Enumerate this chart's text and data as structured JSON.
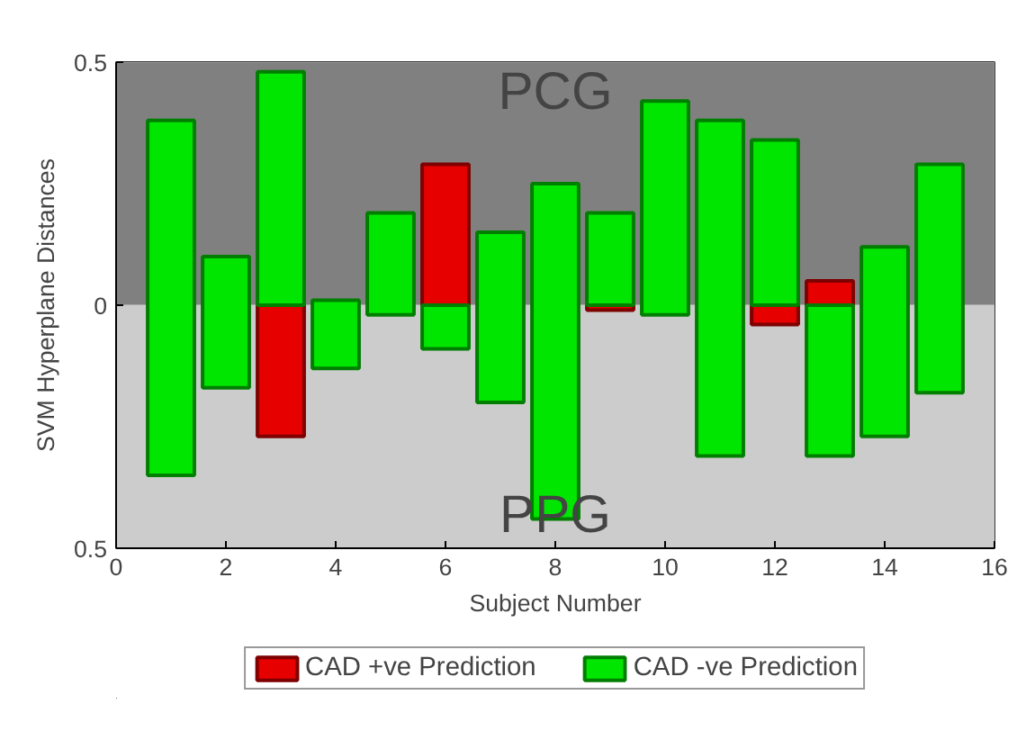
{
  "chart_data": {
    "type": "bar",
    "xlabel": "Subject Number",
    "ylabel": "SVM Hyperplane Distances",
    "xlim": [
      0,
      16
    ],
    "xticks": [
      0,
      2,
      4,
      6,
      8,
      10,
      12,
      14,
      16
    ],
    "ylim": [
      -0.5,
      0.5
    ],
    "yticks": [
      {
        "value": -0.5,
        "label": "0.5"
      },
      0,
      0.5
    ],
    "legend": "bottom",
    "bands": [
      {
        "axis": "y",
        "from": 0,
        "to": 0.5,
        "label": "PCG",
        "color": "#808080"
      },
      {
        "axis": "y",
        "from": -0.5,
        "to": 0,
        "label": "PPG",
        "color": "#cccccc"
      }
    ],
    "series": [
      {
        "name": "CAD +ve Prediction",
        "color": "#e60000",
        "x": [
          3,
          6,
          9,
          12,
          13
        ],
        "base": [
          -0.27,
          0,
          -0.01,
          -0.04,
          0
        ],
        "values": [
          0.27,
          0.29,
          0.01,
          0.04,
          0.05
        ]
      },
      {
        "name": "CAD -ve Prediction",
        "color": "#00e600",
        "x": [
          1,
          2,
          3,
          4,
          5,
          6,
          7,
          8,
          9,
          10,
          11,
          12,
          13,
          14,
          15
        ],
        "base": [
          -0.35,
          -0.17,
          0,
          -0.13,
          -0.02,
          -0.09,
          -0.2,
          -0.44,
          0,
          -0.02,
          -0.31,
          0,
          -0.31,
          -0.27,
          -0.18
        ],
        "values": [
          0.73,
          0.27,
          0.48,
          0.14,
          0.21,
          0.09,
          0.35,
          0.69,
          0.19,
          0.44,
          0.69,
          0.34,
          0.31,
          0.39,
          0.47
        ]
      }
    ]
  }
}
